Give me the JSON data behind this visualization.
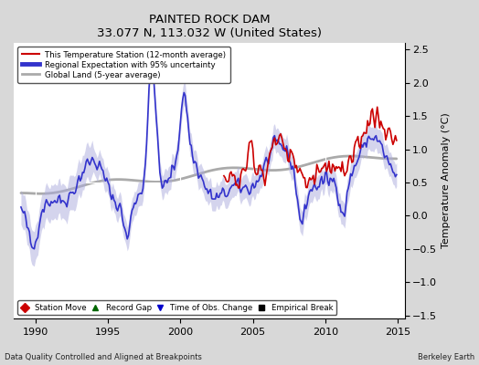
{
  "title": "PAINTED ROCK DAM",
  "subtitle": "33.077 N, 113.032 W (United States)",
  "ylabel": "Temperature Anomaly (°C)",
  "xlabel_left": "Data Quality Controlled and Aligned at Breakpoints",
  "xlabel_right": "Berkeley Earth",
  "xlim": [
    1988.5,
    2015.5
  ],
  "ylim": [
    -1.55,
    2.6
  ],
  "yticks": [
    -1.5,
    -1.0,
    -0.5,
    0.0,
    0.5,
    1.0,
    1.5,
    2.0,
    2.5
  ],
  "xticks": [
    1990,
    1995,
    2000,
    2005,
    2010,
    2015
  ],
  "bg_color": "#d8d8d8",
  "plot_bg": "#ffffff",
  "regional_color": "#3333cc",
  "regional_band_color": "#aaaadd",
  "station_color": "#cc0000",
  "global_color": "#aaaaaa",
  "marker_legend": [
    {
      "marker": "D",
      "color": "#cc0000",
      "label": "Station Move"
    },
    {
      "marker": "^",
      "color": "#006600",
      "label": "Record Gap"
    },
    {
      "marker": "v",
      "color": "#0000cc",
      "label": "Time of Obs. Change"
    },
    {
      "marker": "s",
      "color": "#000000",
      "label": "Empirical Break"
    }
  ]
}
